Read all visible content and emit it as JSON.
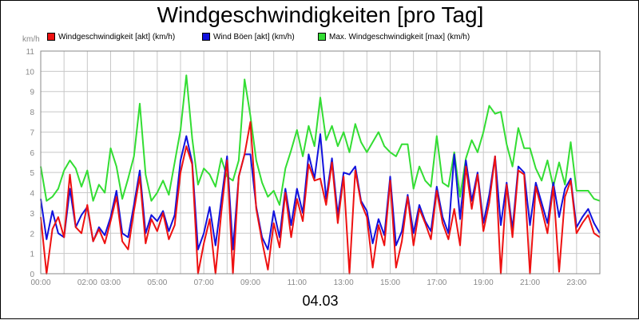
{
  "chart_data": {
    "type": "line",
    "title": "Windgeschwindigkeiten [pro Tag]",
    "unit_label": "km/h",
    "date_label": "04.03",
    "ylim": [
      0,
      11
    ],
    "y_ticks": [
      "0",
      "1",
      "2",
      "3",
      "4",
      "5",
      "6",
      "7",
      "8",
      "9",
      "10",
      "11"
    ],
    "xlim": [
      0,
      24
    ],
    "x_ticks": [
      {
        "label": "00:00",
        "h": 0
      },
      {
        "label": "02:00",
        "h": 2
      },
      {
        "label": "03:00",
        "h": 3
      },
      {
        "label": "05:00",
        "h": 5
      },
      {
        "label": "07:00",
        "h": 7
      },
      {
        "label": "09:00",
        "h": 9
      },
      {
        "label": "11:00",
        "h": 11
      },
      {
        "label": "13:00",
        "h": 13
      },
      {
        "label": "15:00",
        "h": 15
      },
      {
        "label": "17:00",
        "h": 17
      },
      {
        "label": "19:00",
        "h": 19
      },
      {
        "label": "21:00",
        "h": 21
      },
      {
        "label": "23:00",
        "h": 23
      }
    ],
    "grid": true,
    "legend_position": "top",
    "series": [
      {
        "name": "Windgeschwindigkeit [akt] (km/h)",
        "color": "#ee1111",
        "x": [
          0,
          0.25,
          0.5,
          0.75,
          1,
          1.25,
          1.5,
          1.75,
          2,
          2.25,
          2.5,
          2.75,
          3,
          3.25,
          3.5,
          3.75,
          4,
          4.25,
          4.5,
          4.75,
          5,
          5.25,
          5.5,
          5.75,
          6,
          6.25,
          6.5,
          6.75,
          7,
          7.25,
          7.5,
          7.75,
          8,
          8.25,
          8.5,
          8.75,
          9,
          9.25,
          9.5,
          9.75,
          10,
          10.25,
          10.5,
          10.75,
          11,
          11.25,
          11.5,
          11.75,
          12,
          12.25,
          12.5,
          12.75,
          13,
          13.25,
          13.5,
          13.75,
          14,
          14.25,
          14.5,
          14.75,
          15,
          15.25,
          15.5,
          15.75,
          16,
          16.25,
          16.5,
          16.75,
          17,
          17.25,
          17.5,
          17.75,
          18,
          18.25,
          18.5,
          18.75,
          19,
          19.25,
          19.5,
          19.75,
          20,
          20.25,
          20.5,
          20.75,
          21,
          21.25,
          21.5,
          21.75,
          22,
          22.25,
          22.5,
          22.75,
          23,
          23.25,
          23.5,
          23.75,
          24
        ],
        "values": [
          2.8,
          0,
          2.2,
          2.8,
          1.8,
          4.9,
          2.3,
          2.0,
          3.4,
          1.6,
          2.2,
          1.5,
          2.6,
          3.8,
          1.6,
          1.2,
          3.1,
          4.8,
          1.5,
          2.7,
          2.1,
          3.0,
          1.7,
          2.4,
          5.0,
          6.3,
          5.4,
          0,
          1.5,
          2.7,
          0,
          3.0,
          5.6,
          0,
          4.8,
          5.9,
          7.5,
          3.2,
          1.6,
          0.2,
          2.5,
          1.3,
          4.0,
          1.8,
          3.7,
          2.6,
          5.4,
          4.6,
          4.7,
          3.4,
          5.5,
          2.5,
          4.8,
          0,
          5.1,
          3.5,
          2.8,
          0.3,
          2.4,
          1.4,
          4.6,
          0.3,
          1.6,
          3.8,
          1.4,
          3.2,
          2.5,
          1.7,
          4.1,
          2.5,
          1.7,
          3.2,
          1.4,
          5.3,
          3.2,
          4.9,
          2.1,
          3.5,
          5.8,
          0,
          4.4,
          1.8,
          5.1,
          4.9,
          0,
          4.3,
          3.2,
          2.0,
          4.3,
          0.1,
          3.8,
          4.6,
          2.0,
          2.5,
          2.9,
          2.0,
          1.8
        ]
      },
      {
        "name": "Wind Böen [akt] (km/h)",
        "color": "#1111dd",
        "x": [
          0,
          0.25,
          0.5,
          0.75,
          1,
          1.25,
          1.5,
          1.75,
          2,
          2.25,
          2.5,
          2.75,
          3,
          3.25,
          3.5,
          3.75,
          4,
          4.25,
          4.5,
          4.75,
          5,
          5.25,
          5.5,
          5.75,
          6,
          6.25,
          6.5,
          6.75,
          7,
          7.25,
          7.5,
          7.75,
          8,
          8.25,
          8.5,
          8.75,
          9,
          9.25,
          9.5,
          9.75,
          10,
          10.25,
          10.5,
          10.75,
          11,
          11.25,
          11.5,
          11.75,
          12,
          12.25,
          12.5,
          12.75,
          13,
          13.25,
          13.5,
          13.75,
          14,
          14.25,
          14.5,
          14.75,
          15,
          15.25,
          15.5,
          15.75,
          16,
          16.25,
          16.5,
          16.75,
          17,
          17.25,
          17.5,
          17.75,
          18,
          18.25,
          18.5,
          18.75,
          19,
          19.25,
          19.5,
          19.75,
          20,
          20.25,
          20.5,
          20.75,
          21,
          21.25,
          21.5,
          21.75,
          22,
          22.25,
          22.5,
          22.75,
          23,
          23.25,
          23.5,
          23.75,
          24
        ],
        "values": [
          3.7,
          1.7,
          3.1,
          2.0,
          1.8,
          4.2,
          2.3,
          2.9,
          3.3,
          1.6,
          2.3,
          1.9,
          2.8,
          4.1,
          2.0,
          1.8,
          3.4,
          5.1,
          2.0,
          2.9,
          2.6,
          3.1,
          2.1,
          2.9,
          5.6,
          6.8,
          5.5,
          1.2,
          2.0,
          3.3,
          1.4,
          3.6,
          5.8,
          1.2,
          4.8,
          5.9,
          5.9,
          3.3,
          1.8,
          1.2,
          3.1,
          1.8,
          4.2,
          2.4,
          4.2,
          3.0,
          5.9,
          4.7,
          6.9,
          3.7,
          5.7,
          2.9,
          5.0,
          4.9,
          5.3,
          3.6,
          3.1,
          1.5,
          2.7,
          1.9,
          4.8,
          1.4,
          2.1,
          3.9,
          2.0,
          3.4,
          2.6,
          2.1,
          4.3,
          2.8,
          2.0,
          5.9,
          2.7,
          5.6,
          3.6,
          5.0,
          2.5,
          3.9,
          5.8,
          2.4,
          4.5,
          2.2,
          5.3,
          5.0,
          2.4,
          4.5,
          3.5,
          2.5,
          4.5,
          2.8,
          4.2,
          4.7,
          2.3,
          2.8,
          3.2,
          2.5,
          2.0
        ]
      },
      {
        "name": "Max. Windgeschwindigkeit [max] (km/h)",
        "color": "#33dd33",
        "x": [
          0,
          0.25,
          0.5,
          0.75,
          1,
          1.25,
          1.5,
          1.75,
          2,
          2.25,
          2.5,
          2.75,
          3,
          3.25,
          3.5,
          3.75,
          4,
          4.25,
          4.5,
          4.75,
          5,
          5.25,
          5.5,
          5.75,
          6,
          6.25,
          6.5,
          6.75,
          7,
          7.25,
          7.5,
          7.75,
          8,
          8.25,
          8.5,
          8.75,
          9,
          9.25,
          9.5,
          9.75,
          10,
          10.25,
          10.5,
          10.75,
          11,
          11.25,
          11.5,
          11.75,
          12,
          12.25,
          12.5,
          12.75,
          13,
          13.25,
          13.5,
          13.75,
          14,
          14.25,
          14.5,
          14.75,
          15,
          15.25,
          15.5,
          15.75,
          16,
          16.25,
          16.5,
          16.75,
          17,
          17.25,
          17.5,
          17.75,
          18,
          18.25,
          18.5,
          18.75,
          19,
          19.25,
          19.5,
          19.75,
          20,
          20.25,
          20.5,
          20.75,
          21,
          21.25,
          21.5,
          21.75,
          22,
          22.25,
          22.5,
          22.75,
          23,
          23.25,
          23.5,
          23.75,
          24
        ],
        "values": [
          5.3,
          3.6,
          3.8,
          4.2,
          5.1,
          5.6,
          5.2,
          4.3,
          5.1,
          3.6,
          4.4,
          4.0,
          6.2,
          5.3,
          3.7,
          4.7,
          5.8,
          8.4,
          4.9,
          3.6,
          4.0,
          4.6,
          3.9,
          5.5,
          7.1,
          9.8,
          6.7,
          4.4,
          5.2,
          4.9,
          4.3,
          5.7,
          4.8,
          4.6,
          5.6,
          9.6,
          7.8,
          5.6,
          4.5,
          3.8,
          4.1,
          3.4,
          5.2,
          6.1,
          7.1,
          5.8,
          7.3,
          6.3,
          8.7,
          6.6,
          7.3,
          6.3,
          7.0,
          6.0,
          7.4,
          6.5,
          6.0,
          6.5,
          7.0,
          6.3,
          6.0,
          5.8,
          6.4,
          6.4,
          4.2,
          5.3,
          4.6,
          4.3,
          6.8,
          4.5,
          4.3,
          6.0,
          3.8,
          5.7,
          6.6,
          6.0,
          7.0,
          8.3,
          7.9,
          8.0,
          6.4,
          5.3,
          7.2,
          6.2,
          6.2,
          5.2,
          4.6,
          5.6,
          4.3,
          5.5,
          4.4,
          6.5,
          4.1,
          4.1,
          4.1,
          3.7,
          3.6
        ]
      }
    ]
  }
}
